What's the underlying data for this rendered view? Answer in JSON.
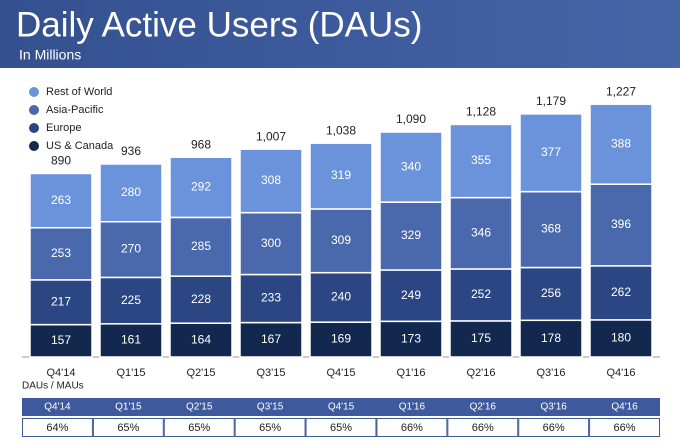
{
  "chart_data": {
    "type": "stacked-bar",
    "title": "Daily Active Users (DAUs)",
    "subtitle": "In Millions",
    "categories": [
      "Q4'14",
      "Q1'15",
      "Q2'15",
      "Q3'15",
      "Q4'15",
      "Q1'16",
      "Q2'16",
      "Q3'16",
      "Q4'16"
    ],
    "series": [
      {
        "name": "US & Canada",
        "color": "#13284f",
        "values": [
          157,
          161,
          164,
          167,
          169,
          173,
          175,
          178,
          180
        ]
      },
      {
        "name": "Europe",
        "color": "#2b4682",
        "values": [
          217,
          225,
          228,
          233,
          240,
          249,
          252,
          256,
          262
        ]
      },
      {
        "name": "Asia-Pacific",
        "color": "#4a69ad",
        "values": [
          253,
          270,
          285,
          300,
          309,
          329,
          346,
          368,
          396
        ]
      },
      {
        "name": "Rest of World",
        "color": "#6b93dc",
        "values": [
          263,
          280,
          292,
          308,
          319,
          340,
          355,
          377,
          388
        ]
      }
    ],
    "totals": {
      "values": [
        890,
        936,
        968,
        1007,
        1038,
        1090,
        1128,
        1179,
        1227
      ],
      "value_labels": [
        "890",
        "936",
        "968",
        "1,007",
        "1,038",
        "1,090",
        "1,128",
        "1,179",
        "1,227"
      ]
    }
  },
  "table": {
    "title": "DAUs / MAUs",
    "header": [
      "Q4'14",
      "Q1'15",
      "Q2'15",
      "Q3'15",
      "Q4'15",
      "Q1'16",
      "Q2'16",
      "Q3'16",
      "Q4'16"
    ],
    "row": [
      "64%",
      "65%",
      "65%",
      "65%",
      "65%",
      "66%",
      "66%",
      "66%",
      "66%"
    ]
  }
}
